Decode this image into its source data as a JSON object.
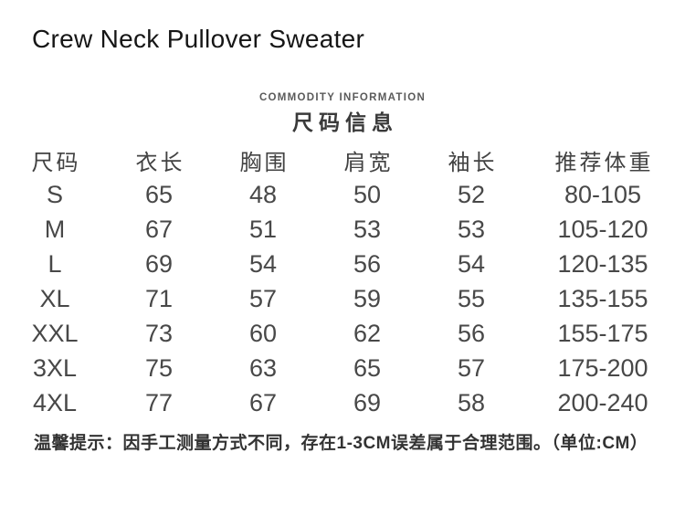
{
  "page": {
    "title": "Crew Neck Pullover Sweater"
  },
  "section_header": {
    "eyebrow": "COMMODITY INFORMATION",
    "title": "尺码信息"
  },
  "size_table": {
    "headers": [
      "尺码",
      "衣长",
      "胸围",
      "肩宽",
      "袖长",
      "推荐体重"
    ],
    "rows": [
      {
        "size": "S",
        "values": [
          "65",
          "48",
          "50",
          "52",
          "80-105"
        ]
      },
      {
        "size": "M",
        "values": [
          "67",
          "51",
          "53",
          "53",
          "105-120"
        ]
      },
      {
        "size": "L",
        "values": [
          "69",
          "54",
          "56",
          "54",
          "120-135"
        ]
      },
      {
        "size": "XL",
        "values": [
          "71",
          "57",
          "59",
          "55",
          "135-155"
        ]
      },
      {
        "size": "XXL",
        "values": [
          "73",
          "60",
          "62",
          "56",
          "155-175"
        ]
      },
      {
        "size": "3XL",
        "values": [
          "75",
          "63",
          "65",
          "57",
          "175-200"
        ]
      },
      {
        "size": "4XL",
        "values": [
          "77",
          "67",
          "69",
          "58",
          "200-240"
        ]
      }
    ]
  },
  "footer": {
    "note": "温馨提示：因手工测量方式不同，存在1-3CM误差属于合理范围。（单位:CM）"
  },
  "colors": {
    "background": "#ffffff",
    "title_text": "#161616",
    "table_text": "#484848",
    "muted_text": "#5a5a5a"
  }
}
